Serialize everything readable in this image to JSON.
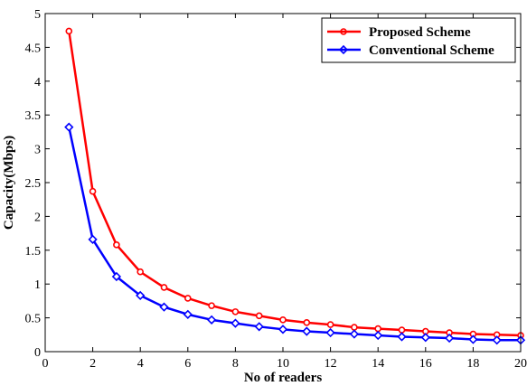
{
  "chart_data": {
    "type": "line",
    "xlabel": "No of readers",
    "ylabel": "Capacity(Mbps)",
    "xlim": [
      0,
      20
    ],
    "ylim": [
      0,
      5
    ],
    "xticks": [
      0,
      2,
      4,
      6,
      8,
      10,
      12,
      14,
      16,
      18,
      20
    ],
    "xtick_labels": [
      "0",
      "2",
      "4",
      "6",
      "8",
      "10",
      "12",
      "14",
      "16",
      "18",
      "20"
    ],
    "yticks": [
      0,
      0.5,
      1,
      1.5,
      2,
      2.5,
      3,
      3.5,
      4,
      4.5,
      5
    ],
    "ytick_labels": [
      "0",
      "0.5",
      "1",
      "1.5",
      "2",
      "2.5",
      "3",
      "3.5",
      "4",
      "4.5",
      "5"
    ],
    "grid": false,
    "legend_position": "top-right",
    "x": [
      1,
      2,
      3,
      4,
      5,
      6,
      7,
      8,
      9,
      10,
      11,
      12,
      13,
      14,
      15,
      16,
      17,
      18,
      19,
      20
    ],
    "series": [
      {
        "name": "Proposed Scheme",
        "color": "#ff0000",
        "marker": "circle",
        "values": [
          4.74,
          2.37,
          1.58,
          1.18,
          0.95,
          0.79,
          0.68,
          0.59,
          0.53,
          0.47,
          0.43,
          0.4,
          0.36,
          0.34,
          0.32,
          0.3,
          0.28,
          0.26,
          0.25,
          0.24
        ]
      },
      {
        "name": "Conventional Scheme",
        "color": "#0000ff",
        "marker": "diamond",
        "values": [
          3.32,
          1.66,
          1.11,
          0.83,
          0.66,
          0.55,
          0.47,
          0.42,
          0.37,
          0.33,
          0.3,
          0.28,
          0.26,
          0.24,
          0.22,
          0.21,
          0.2,
          0.18,
          0.17,
          0.17
        ]
      }
    ]
  }
}
